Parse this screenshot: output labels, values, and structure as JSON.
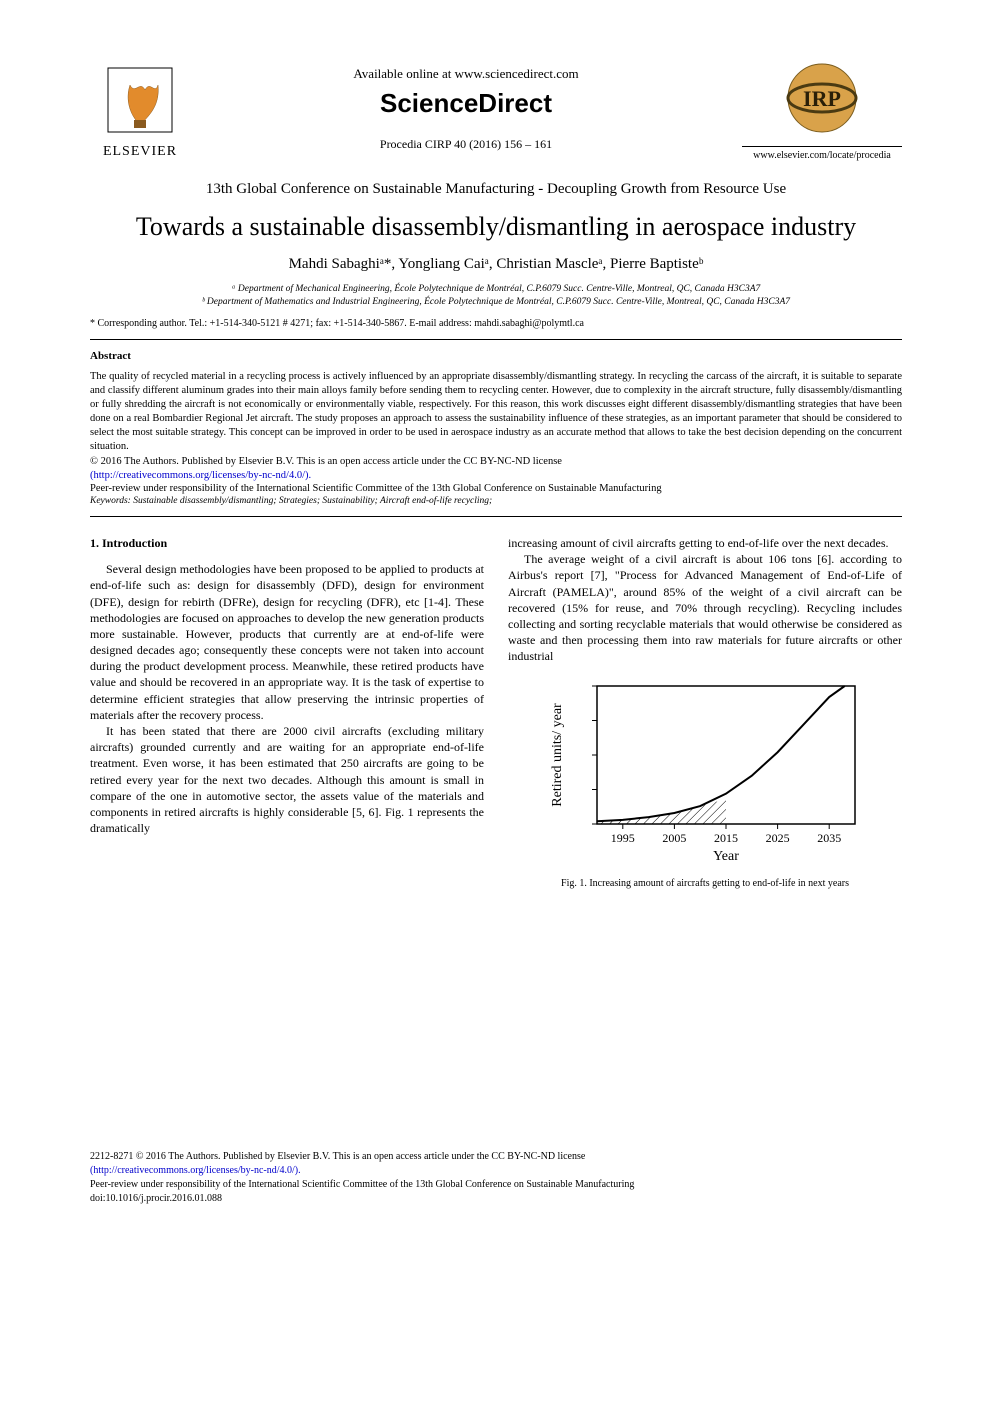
{
  "header": {
    "available_online": "Available online at www.sciencedirect.com",
    "sciencedirect": "ScienceDirect",
    "elsevier_label": "ELSEVIER",
    "procedia_line": "Procedia CIRP 40 (2016) 156 – 161",
    "locate_url": "www.elsevier.com/locate/procedia",
    "elsevier_tree_color": "#e28b2c",
    "irp_circle_color": "#d9a24a"
  },
  "conference": "13th Global Conference on Sustainable Manufacturing - Decoupling Growth from Resource Use",
  "title": "Towards a sustainable disassembly/dismantling in aerospace industry",
  "authors_html": "Mahdi Sabaghiᵃ*, Yongliang Caiᵃ, Christian Mascleᵃ, Pierre Baptisteᵇ",
  "affiliations": {
    "a": "ᵃ Department of Mechanical Engineering, École Polytechnique de Montréal, C.P.6079 Succ. Centre-Ville, Montreal, QC, Canada H3C3A7",
    "b": "ᵇ Department of Mathematics and Industrial Engineering, École Polytechnique de Montréal, C.P.6079 Succ. Centre-Ville, Montreal, QC, Canada H3C3A7"
  },
  "corresponding": "* Corresponding author. Tel.: +1-514-340-5121 # 4271; fax: +1-514-340-5867. E-mail address: mahdi.sabaghi@polymtl.ca",
  "abstract": {
    "heading": "Abstract",
    "text": "The quality of recycled material in a recycling process is actively influenced by an appropriate disassembly/dismantling strategy. In recycling the carcass of the aircraft, it is suitable to separate and classify different aluminum grades into their main alloys family before sending them to recycling center. However, due to complexity in the aircraft structure, fully disassembly/dismantling or fully shredding the aircraft is not economically or environmentally viable, respectively. For this reason, this work discusses eight different disassembly/dismantling strategies that have been done on a real Bombardier Regional Jet aircraft. The study proposes an approach to assess the sustainability influence of these strategies, as an important parameter that should be considered to select the most suitable strategy. This concept can be improved in order to be used in aerospace industry as an accurate method that allows to take the best decision depending on the concurrent situation.",
    "license1": "© 2016 The Authors. Published by Elsevier B.V. This is an open access article under the CC BY-NC-ND license",
    "license_link": "(http://creativecommons.org/licenses/by-nc-nd/4.0/).",
    "peer_review": "Peer-review under responsibility of the International Scientific Committee of the 13th Global Conference on Sustainable Manufacturing",
    "keywords_label": "Keywords:",
    "keywords": " Sustainable disassembly/dismantling; Strategies; Sustainability; Aircraft end-of-life recycling;"
  },
  "intro": {
    "heading": "1. Introduction",
    "p1": "Several design methodologies have been proposed to be applied to products at end-of-life such as: design for disassembly (DFD), design for environment (DFE), design for rebirth (DFRe), design for recycling (DFR), etc [1-4]. These methodologies are focused on approaches to develop the new generation products more sustainable. However, products that currently are at end-of-life were designed decades ago; consequently these concepts were not taken into account during the product development process. Meanwhile, these retired products have value and should be recovered in an appropriate way. It is the task of expertise to determine efficient strategies that allow preserving the intrinsic properties of materials after the recovery process.",
    "p2": "It has been stated that there are 2000 civil aircrafts (excluding military aircrafts) grounded currently and are waiting for an appropriate end-of-life treatment. Even worse, it has been estimated that 250 aircrafts are going to be retired every year for the next two decades. Although this amount is small in compare of the one in automotive sector, the assets value of the materials and components in retired aircrafts is highly considerable [5, 6]. Fig. 1 represents the dramatically",
    "p3_right": "increasing amount of civil aircrafts getting to end-of-life over the next decades.",
    "p4_right": "The average weight of a civil aircraft is about 106 tons [6]. according to Airbus's report [7], \"Process for Advanced Management of End-of-Life of Aircraft (PAMELA)\", around 85% of the weight of a civil aircraft can be recovered (15% for reuse, and 70% through recycling). Recycling includes collecting and sorting recyclable materials that would otherwise be considered as waste and then processing them into raw materials for future aircrafts or other industrial"
  },
  "figure1": {
    "type": "line",
    "caption": "Fig. 1. Increasing amount of aircrafts getting to end-of-life in next years",
    "x_label": "Year",
    "y_label": "Retired units/ year",
    "x_ticks": [
      1995,
      2005,
      2015,
      2025,
      2035
    ],
    "x_lim": [
      1990,
      2040
    ],
    "y_lim": [
      0,
      1.0
    ],
    "curve_points": [
      [
        1990,
        0.02
      ],
      [
        1995,
        0.03
      ],
      [
        2000,
        0.05
      ],
      [
        2005,
        0.08
      ],
      [
        2010,
        0.13
      ],
      [
        2015,
        0.22
      ],
      [
        2020,
        0.35
      ],
      [
        2025,
        0.52
      ],
      [
        2030,
        0.72
      ],
      [
        2035,
        0.92
      ],
      [
        2038,
        1.0
      ]
    ],
    "hatch_points": [
      [
        1990,
        0.02
      ],
      [
        1995,
        0.03
      ],
      [
        2000,
        0.05
      ],
      [
        2005,
        0.08
      ],
      [
        2010,
        0.13
      ],
      [
        2015,
        0.18
      ]
    ],
    "axis_color": "#000000",
    "line_color": "#000000",
    "line_width": 2,
    "background_color": "#ffffff",
    "label_fontsize": 14,
    "tick_fontsize": 12
  },
  "footer": {
    "issn_line": "2212-8271 © 2016 The Authors. Published by Elsevier B.V. This is an open access article under the CC BY-NC-ND license",
    "license_link": "(http://creativecommons.org/licenses/by-nc-nd/4.0/).",
    "peer_review": "Peer-review under responsibility of the International Scientific Committee of the 13th Global Conference on Sustainable Manufacturing",
    "doi": "doi:10.1016/j.procir.2016.01.088"
  }
}
